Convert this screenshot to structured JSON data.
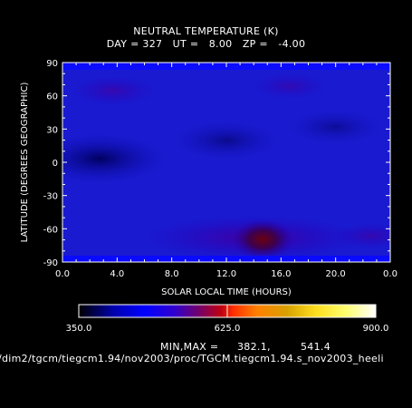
{
  "chart_data": {
    "type": "heatmap",
    "title": "NEUTRAL TEMPERATURE (K)",
    "subtitle": "DAY = 327   UT =   8.00   ZP =   -4.00",
    "xlabel": "SOLAR LOCAL TIME (HOURS)",
    "ylabel": "LATITUDE (DEGREES GEOGRAPHIC)",
    "xlim": [
      0,
      24
    ],
    "ylim": [
      -90,
      90
    ],
    "x_tick_labels": [
      "0.0",
      "4.0",
      "8.0",
      "12.0",
      "16.0",
      "20.0",
      "0.0"
    ],
    "y_tick_labels": [
      "90",
      "60",
      "30",
      "0",
      "-30",
      "-60",
      "-90"
    ],
    "colorbar": {
      "min": 350.0,
      "max": 900.0,
      "labels": [
        "350.0",
        "625.0",
        "900.0"
      ],
      "colors": [
        "#000000",
        "#0000ff",
        "#4000c0",
        "#800080",
        "#c00000",
        "#ff0000",
        "#ff8000",
        "#ffc000",
        "#ffff40",
        "#ffffff"
      ]
    },
    "min_max_label": "MIN,MAX =",
    "min_value": "382.1,",
    "max_value": "541.4",
    "field_min": 382.1,
    "field_max": 541.4,
    "grid": false
  },
  "source_path": "/dim2/tgcm/tiegcm1.94/nov2003/proc/TGCM.tiegcm1.94.s_nov2003_heeli"
}
